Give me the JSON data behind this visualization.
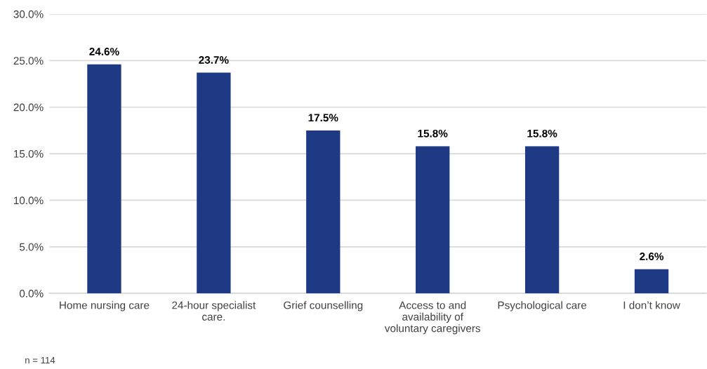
{
  "chart_data": {
    "type": "bar",
    "categories": [
      "Home nursing care",
      "24-hour specialist care.",
      "Grief counselling",
      "Access to and availability of voluntary caregivers",
      "Psychological care",
      "I don’t know"
    ],
    "values": [
      24.6,
      23.7,
      17.5,
      15.8,
      15.8,
      2.6
    ],
    "value_labels": [
      "24.6%",
      "23.7%",
      "17.5%",
      "15.8%",
      "15.8%",
      "2.6%"
    ],
    "color": "#1f3a84",
    "ylim": [
      0,
      30
    ],
    "yticks": [
      {
        "value": 0,
        "label": "0.0%"
      },
      {
        "value": 5,
        "label": "5.0%"
      },
      {
        "value": 10,
        "label": "10.0%"
      },
      {
        "value": 15,
        "label": "15.0%"
      },
      {
        "value": 20,
        "label": "20.0%"
      },
      {
        "value": 25,
        "label": "25.0%"
      },
      {
        "value": 30,
        "label": "30.0%"
      }
    ],
    "grid": "y",
    "annotations": [
      "n = 114"
    ]
  }
}
